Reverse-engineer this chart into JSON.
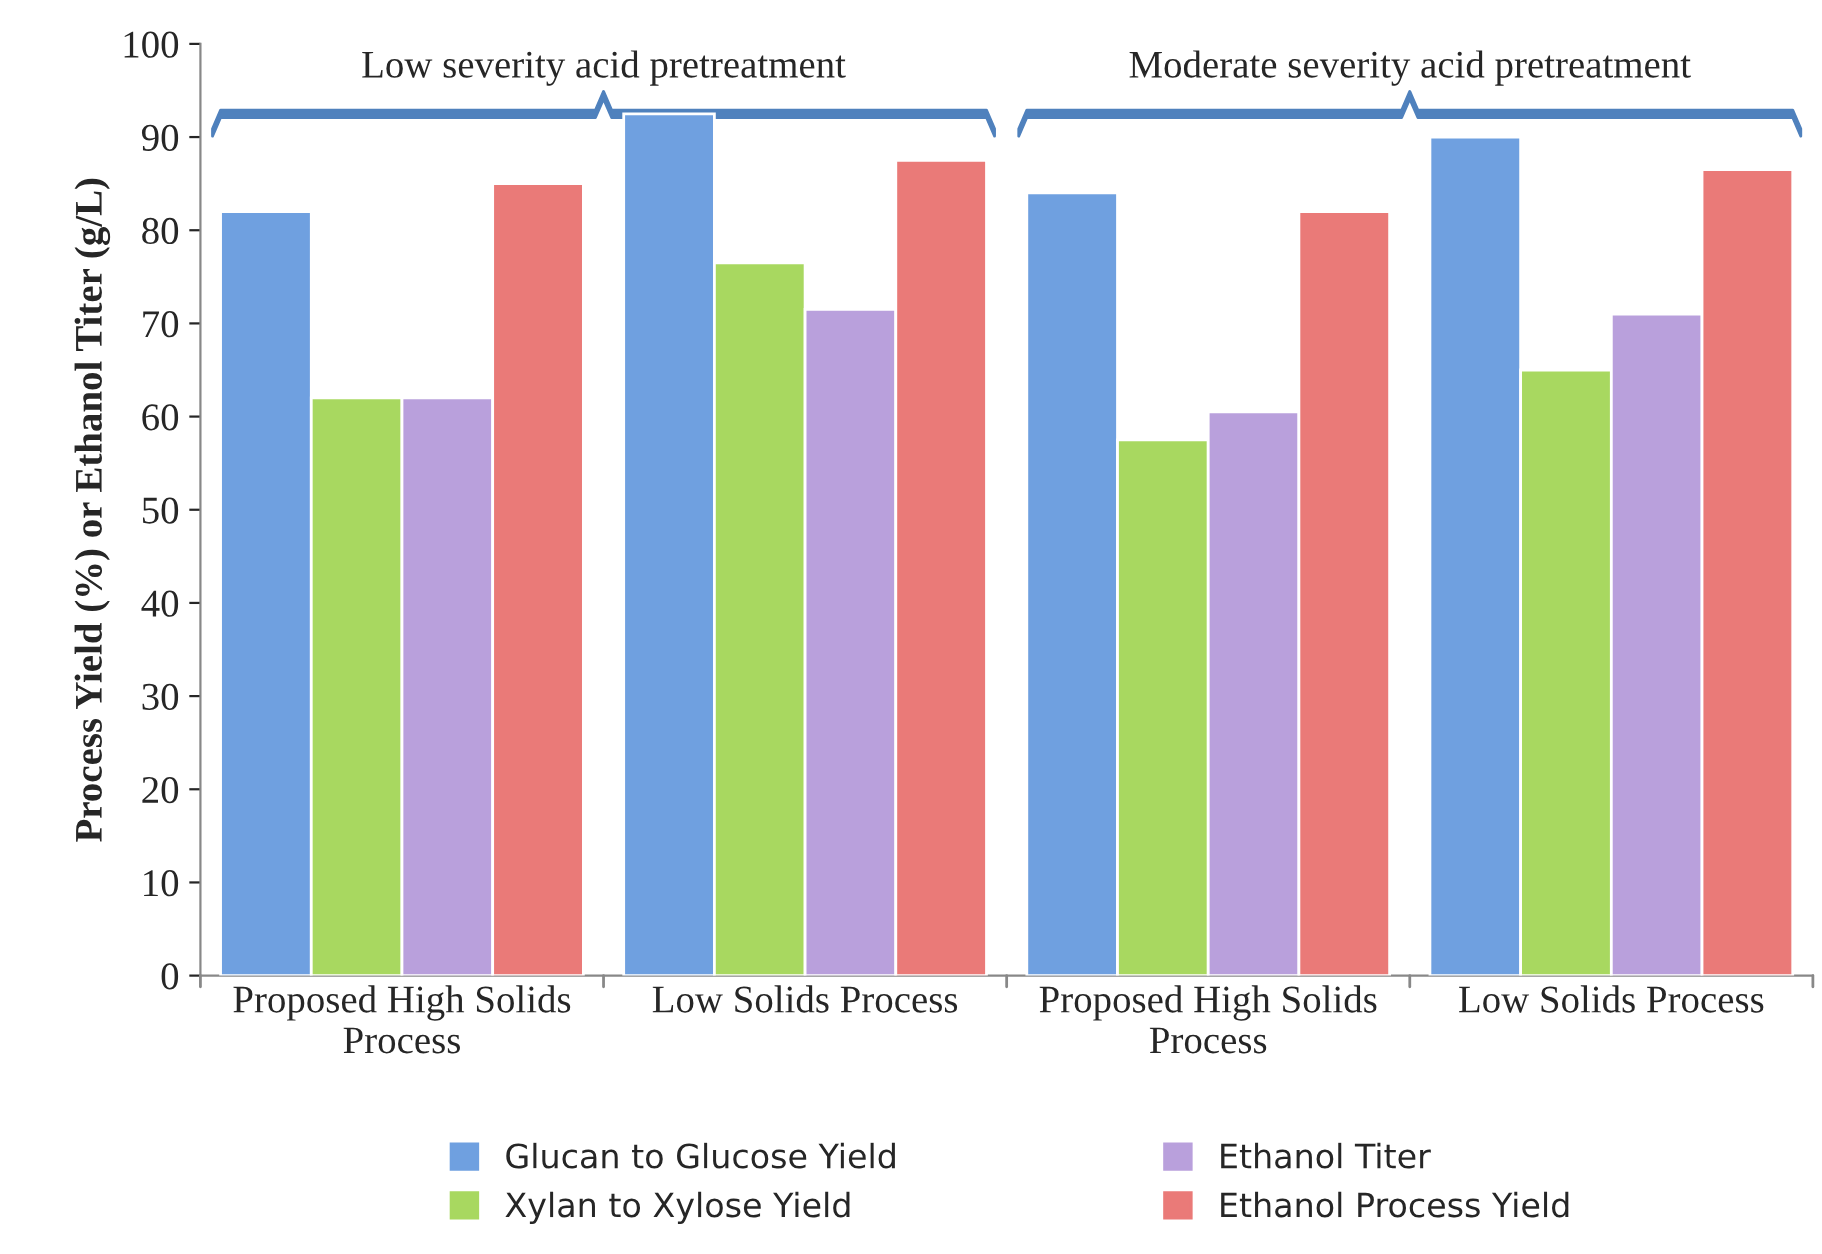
{
  "chart_data": {
    "type": "bar",
    "ylabel": "Process Yield (%) or Ethanol Titer (g/L)",
    "categories": [
      "Proposed High Solids\nProcess",
      "Low Solids Process",
      "Proposed High Solids\nProcess",
      "Low Solids Process"
    ],
    "series": [
      {
        "name": "Glucan to Glucose Yield",
        "color": "#6fa0e0",
        "values": [
          82,
          92.5,
          84,
          90
        ]
      },
      {
        "name": "Xylan to Xylose Yield",
        "color": "#a8d860",
        "values": [
          62,
          76.5,
          57.5,
          65
        ]
      },
      {
        "name": "Ethanol Titer",
        "color": "#b9a0dc",
        "values": [
          62,
          71.5,
          60.5,
          71
        ]
      },
      {
        "name": "Ethanol Process Yield",
        "color": "#ea7a78",
        "values": [
          85,
          87.5,
          82,
          86.5
        ]
      }
    ],
    "ylim": [
      0,
      100
    ],
    "yticks": [
      0,
      10,
      20,
      30,
      40,
      50,
      60,
      70,
      80,
      90,
      100
    ],
    "grid": false,
    "legend": "bottom",
    "annotations": [
      "Low severity acid pretreatment",
      "Moderate severity acid pretreatment"
    ]
  }
}
